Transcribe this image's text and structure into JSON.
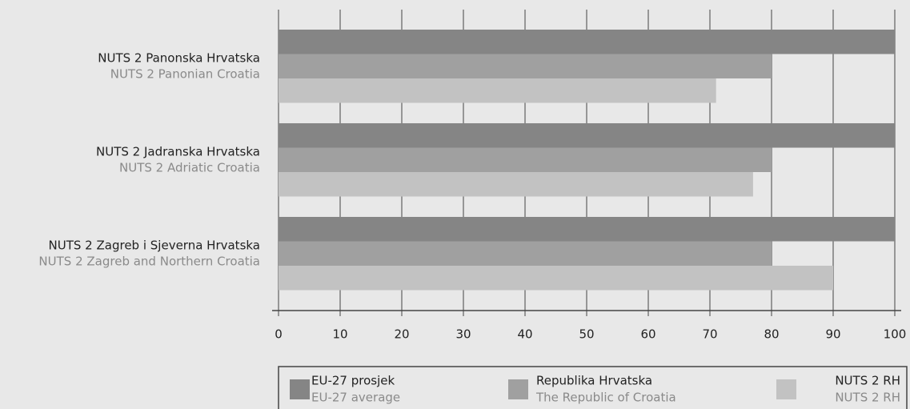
{
  "chart_data": {
    "type": "barh",
    "categories": [
      "NUTS 2 Panonska Hrvatska",
      "NUTS 2 Jadranska Hrvatska",
      "NUTS 2 Zagreb i Sjeverna Hrvatska"
    ],
    "categories_en": [
      "NUTS 2 Panonian Croatia",
      "NUTS 2 Adriatic Croatia",
      "NUTS 2 Zagreb and Northern Croatia"
    ],
    "series": [
      {
        "name": "EU-27 prosjek",
        "name_en": "EU-27 average",
        "color": "#858585",
        "values": [
          100,
          100,
          100
        ]
      },
      {
        "name": "Republika Hrvatska",
        "name_en": "The Republic of Croatia",
        "color": "#a0a0a0",
        "values": [
          80,
          80,
          80
        ]
      },
      {
        "name": "NUTS 2 RH",
        "name_en": "NUTS 2 RH",
        "color": "#c2c2c2",
        "values": [
          71,
          77,
          90
        ]
      }
    ],
    "xlim": [
      0,
      100
    ],
    "xticks": [
      0,
      10,
      20,
      30,
      40,
      50,
      60,
      70,
      80,
      90,
      100
    ],
    "grid": true
  }
}
